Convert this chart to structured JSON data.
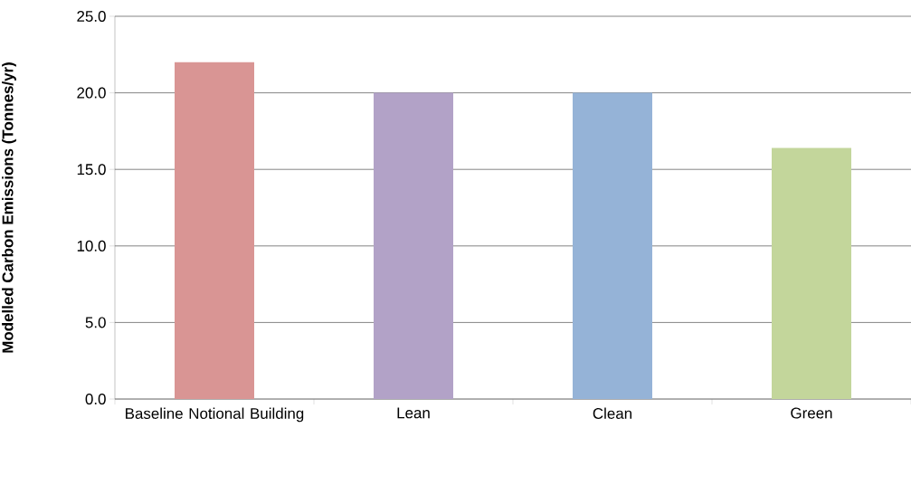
{
  "chart_data": {
    "type": "bar",
    "ylabel": "Modelled Carbon Emissions (Tonnes/yr)",
    "categories": [
      "Baseline Notional Building",
      "Lean",
      "Clean",
      "Green"
    ],
    "values": [
      22.0,
      20.0,
      20.0,
      16.4
    ],
    "colors": [
      "#d99594",
      "#b2a2c7",
      "#95b3d7",
      "#c3d69b"
    ],
    "ylim": [
      0,
      25
    ],
    "yticks": [
      {
        "value": 0,
        "label": "0.0"
      },
      {
        "value": 5,
        "label": "5.0"
      },
      {
        "value": 10,
        "label": "10.0"
      },
      {
        "value": 15,
        "label": "15.0"
      },
      {
        "value": 20,
        "label": "20.0"
      },
      {
        "value": 25,
        "label": "25.0"
      }
    ],
    "grid": "y"
  }
}
